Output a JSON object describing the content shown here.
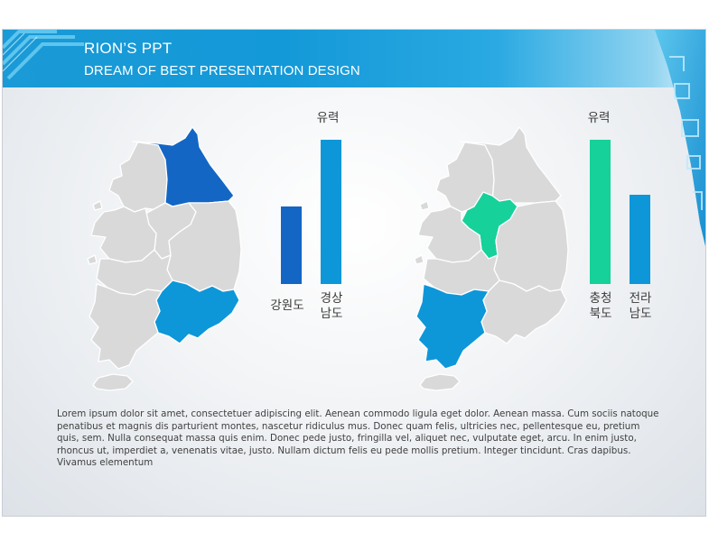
{
  "header": {
    "title": "RION’S PPT",
    "subtitle": "DREAM OF BEST PRESENTATION DESIGN"
  },
  "colors": {
    "accent_blue": "#1499d8",
    "dark_blue": "#1366c4",
    "mid_blue": "#0d97d9",
    "green": "#16d19a",
    "map_gray": "#dcdcdc"
  },
  "left_panel": {
    "top_label": "유력",
    "bars": [
      {
        "label": "강원도",
        "value": 0.54,
        "color": "#1366c4"
      },
      {
        "label": "경상\n남도",
        "value": 1.0,
        "color": "#0d97d9"
      }
    ]
  },
  "right_panel": {
    "top_label": "유력",
    "bars": [
      {
        "label": "충청\n북도",
        "value": 1.0,
        "color": "#16d19a"
      },
      {
        "label": "전라\n남도",
        "value": 0.62,
        "color": "#0d97d9"
      }
    ]
  },
  "body_text": "Lorem ipsum dolor sit amet, consectetuer adipiscing elit. Aenean commodo ligula eget dolor. Aenean massa. Cum sociis natoque penatibus et magnis dis parturient montes, nascetur ridiculus mus. Donec quam felis, ultricies nec, pellentesque eu, pretium quis, sem. Nulla consequat massa quis enim. Donec pede justo, fringilla vel, aliquet nec, vulputate eget, arcu. In enim justo, rhoncus ut, imperdiet a, venenatis vitae, justo. Nullam dictum felis eu pede mollis pretium. Integer tincidunt. Cras dapibus. Vivamus elementum"
}
